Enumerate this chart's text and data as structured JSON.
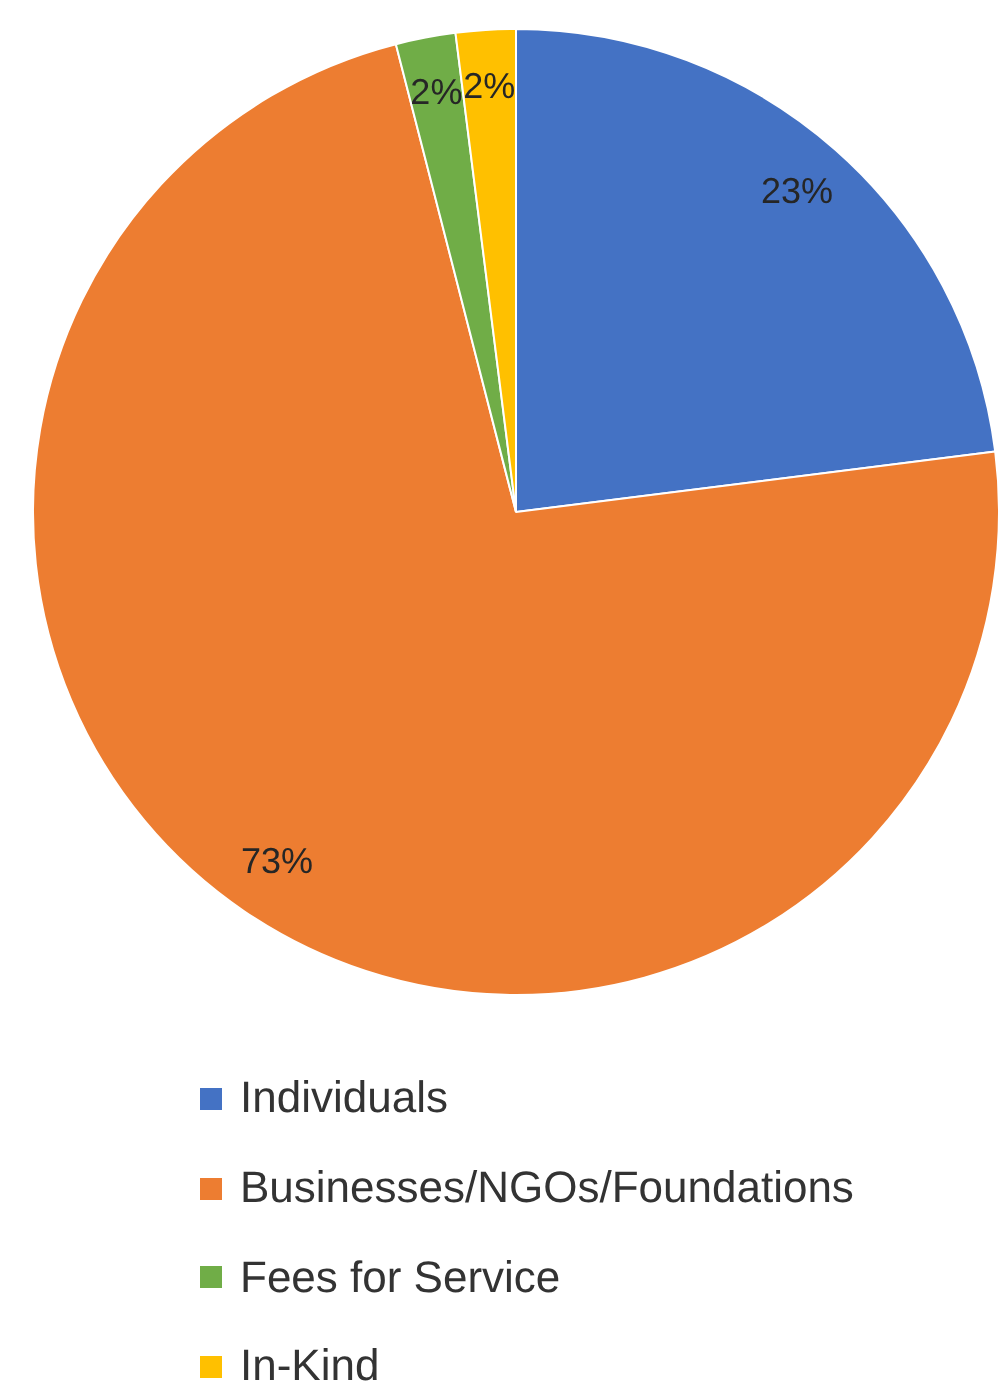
{
  "chart_data": {
    "type": "pie",
    "categories": [
      "Individuals",
      "Businesses/NGOs/Foundations",
      "Fees for Service",
      "In-Kind"
    ],
    "values": [
      23,
      73,
      2,
      2
    ],
    "colors": [
      "#4472c4",
      "#ed7d31",
      "#70ad47",
      "#ffc000"
    ],
    "value_labels": [
      "23%",
      "73%",
      "2%",
      "2%"
    ],
    "legend": "bottom"
  }
}
